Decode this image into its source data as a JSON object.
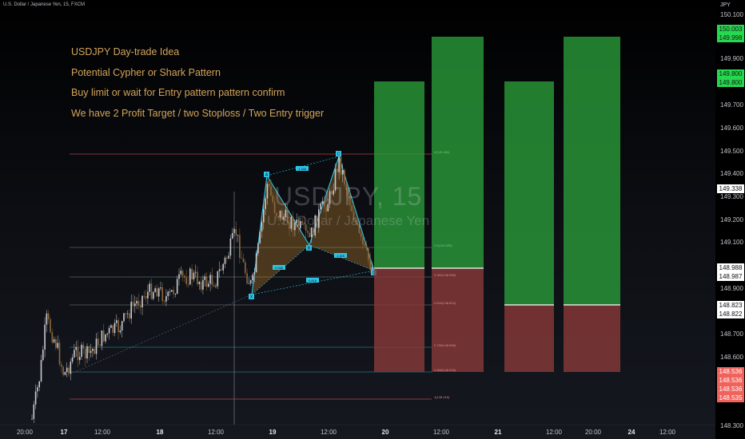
{
  "header": {
    "symbol_line": "U.S. Dollar / Japanese Yen, 15, FXCM"
  },
  "watermark": {
    "symbol": "USDJPY, 15",
    "name": "U.S. Dollar / Japanese Yen"
  },
  "notes": [
    "USDJPY Day-trade Idea",
    "Potential Cypher or Shark Pattern",
    "Buy limit or wait for Entry pattern pattern confirm",
    "We have 2  Profit Target / two Stoploss / Two Entry trigger"
  ],
  "price_axis": {
    "currency": "JPY",
    "ticks": [
      "150.100",
      "149.900",
      "149.800",
      "149.700",
      "149.600",
      "149.500",
      "149.400",
      "149.300",
      "149.200",
      "149.100",
      "148.900",
      "148.800",
      "148.700",
      "148.600",
      "148.300"
    ],
    "tags": [
      {
        "value": "150.003",
        "style": "green"
      },
      {
        "value": "149.998",
        "style": "green"
      },
      {
        "value": "149.800",
        "style": "green"
      },
      {
        "value": "149.800",
        "style": "green"
      },
      {
        "value": "149.338",
        "style": "white"
      },
      {
        "value": "148.988",
        "style": "white"
      },
      {
        "value": "148.987",
        "style": "white"
      },
      {
        "value": "148.823",
        "style": "white"
      },
      {
        "value": "148.822",
        "style": "white"
      },
      {
        "value": "148.536",
        "style": "red"
      },
      {
        "value": "148.536",
        "style": "red"
      },
      {
        "value": "148.536",
        "style": "red"
      },
      {
        "value": "148.535",
        "style": "red"
      }
    ]
  },
  "time_axis": {
    "labels": [
      {
        "text": "20:00",
        "bold": false
      },
      {
        "text": "17",
        "bold": true
      },
      {
        "text": "12:00",
        "bold": false
      },
      {
        "text": "18",
        "bold": true
      },
      {
        "text": "12:00",
        "bold": false
      },
      {
        "text": "19",
        "bold": true
      },
      {
        "text": "12:00",
        "bold": false
      },
      {
        "text": "20",
        "bold": true
      },
      {
        "text": "12:00",
        "bold": false
      },
      {
        "text": "21",
        "bold": true
      },
      {
        "text": "12:00",
        "bold": false
      },
      {
        "text": "20:00",
        "bold": false
      },
      {
        "text": "24",
        "bold": true
      },
      {
        "text": "12:00",
        "bold": false
      }
    ]
  },
  "pattern": {
    "points": [
      "X",
      "A",
      "B",
      "C",
      "D"
    ],
    "ratios": [
      "1.166",
      "0.538",
      "1.305",
      "0.816"
    ]
  },
  "fib_labels": [
    {
      "text": "0.5(149.335)",
      "tone": "green"
    },
    {
      "text": "0.382(148.988)",
      "tone": "red"
    },
    {
      "text": "0.618(148.823)",
      "tone": "red"
    },
    {
      "text": "0.786(148.668)",
      "tone": "red"
    },
    {
      "text": "0.886(148.535)",
      "tone": "red"
    },
    {
      "text": "1(148.416)",
      "tone": "red"
    },
    {
      "text": "0(149.480)",
      "tone": "red"
    }
  ],
  "colors": {
    "profit": "#2b9b3a",
    "loss": "#8a3a3a",
    "pattern_line": "#2ec4e6",
    "pattern_fill": "#c88a2e",
    "note_text": "#d3a45a"
  }
}
